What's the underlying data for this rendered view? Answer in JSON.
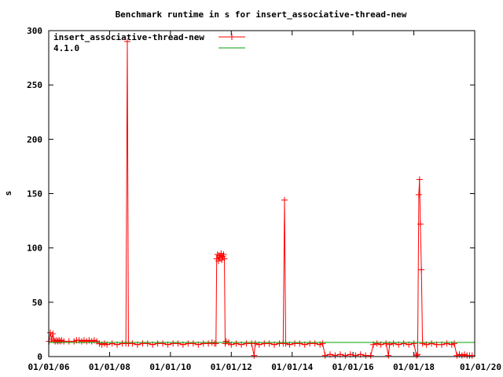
{
  "chart_data": {
    "type": "line",
    "title": "Benchmark runtime in s for insert_associative-thread-new",
    "xlabel": "",
    "ylabel": "s",
    "xlim": [
      "2006-01-01",
      "2020-01-01"
    ],
    "ylim": [
      0,
      300
    ],
    "x_ticks": [
      "01/01/06",
      "01/01/08",
      "01/01/10",
      "01/01/12",
      "01/01/14",
      "01/01/16",
      "01/01/18",
      "01/01/20"
    ],
    "y_ticks": [
      0,
      50,
      100,
      150,
      200,
      250,
      300
    ],
    "grid": false,
    "legend_position": "top-left",
    "colors": {
      "series": "#ff0000",
      "baseline": "#00a000",
      "axis": "#000000"
    },
    "series": [
      {
        "name": "insert_associative-thread-new",
        "style": "line-with-plus-markers",
        "color": "#ff0000",
        "points": [
          [
            "2006-01-05",
            14
          ],
          [
            "2006-01-20",
            22
          ],
          [
            "2006-02-05",
            16
          ],
          [
            "2006-02-20",
            21
          ],
          [
            "2006-03-05",
            15
          ],
          [
            "2006-03-20",
            14
          ],
          [
            "2006-04-05",
            15
          ],
          [
            "2006-04-20",
            14
          ],
          [
            "2006-05-05",
            15
          ],
          [
            "2006-05-20",
            14
          ],
          [
            "2006-06-05",
            15
          ],
          [
            "2006-07-01",
            14
          ],
          [
            "2006-09-01",
            14
          ],
          [
            "2006-11-01",
            14
          ],
          [
            "2006-12-01",
            15
          ],
          [
            "2007-01-01",
            15
          ],
          [
            "2007-02-01",
            14
          ],
          [
            "2007-03-01",
            15
          ],
          [
            "2007-04-01",
            14
          ],
          [
            "2007-05-01",
            15
          ],
          [
            "2007-06-01",
            14
          ],
          [
            "2007-07-01",
            15
          ],
          [
            "2007-08-01",
            14
          ],
          [
            "2007-09-01",
            12
          ],
          [
            "2007-10-01",
            11
          ],
          [
            "2007-11-01",
            12
          ],
          [
            "2007-12-01",
            11
          ],
          [
            "2008-02-01",
            12
          ],
          [
            "2008-04-01",
            11
          ],
          [
            "2008-06-01",
            12
          ],
          [
            "2008-07-15",
            12
          ],
          [
            "2008-08-01",
            290
          ],
          [
            "2008-08-15",
            12
          ],
          [
            "2008-10-01",
            12
          ],
          [
            "2008-12-01",
            11
          ],
          [
            "2009-02-01",
            12
          ],
          [
            "2009-04-01",
            12
          ],
          [
            "2009-06-01",
            11
          ],
          [
            "2009-08-01",
            12
          ],
          [
            "2009-10-01",
            12
          ],
          [
            "2009-12-01",
            11
          ],
          [
            "2010-02-01",
            12
          ],
          [
            "2010-04-01",
            12
          ],
          [
            "2010-06-01",
            11
          ],
          [
            "2010-08-01",
            12
          ],
          [
            "2010-10-01",
            12
          ],
          [
            "2010-12-01",
            11
          ],
          [
            "2011-02-01",
            12
          ],
          [
            "2011-04-01",
            12
          ],
          [
            "2011-05-15",
            13
          ],
          [
            "2011-06-15",
            12
          ],
          [
            "2011-07-01",
            12
          ],
          [
            "2011-07-10",
            90
          ],
          [
            "2011-07-20",
            94
          ],
          [
            "2011-08-01",
            88
          ],
          [
            "2011-08-10",
            93
          ],
          [
            "2011-08-20",
            91
          ],
          [
            "2011-09-01",
            95
          ],
          [
            "2011-09-10",
            89
          ],
          [
            "2011-09-20",
            92
          ],
          [
            "2011-10-01",
            94
          ],
          [
            "2011-10-10",
            90
          ],
          [
            "2011-10-20",
            12
          ],
          [
            "2011-11-01",
            14
          ],
          [
            "2011-12-01",
            13
          ],
          [
            "2012-01-01",
            11
          ],
          [
            "2012-03-01",
            12
          ],
          [
            "2012-05-01",
            11
          ],
          [
            "2012-07-01",
            12
          ],
          [
            "2012-09-01",
            12
          ],
          [
            "2012-10-01",
            1
          ],
          [
            "2012-10-15",
            12
          ],
          [
            "2012-12-01",
            11
          ],
          [
            "2013-02-01",
            12
          ],
          [
            "2013-04-01",
            12
          ],
          [
            "2013-06-01",
            11
          ],
          [
            "2013-08-01",
            12
          ],
          [
            "2013-09-15",
            12
          ],
          [
            "2013-10-01",
            144
          ],
          [
            "2013-10-15",
            12
          ],
          [
            "2013-12-01",
            11
          ],
          [
            "2014-02-01",
            12
          ],
          [
            "2014-04-01",
            12
          ],
          [
            "2014-06-01",
            11
          ],
          [
            "2014-08-01",
            12
          ],
          [
            "2014-10-01",
            12
          ],
          [
            "2014-12-01",
            11
          ],
          [
            "2015-01-01",
            12
          ],
          [
            "2015-02-01",
            1
          ],
          [
            "2015-04-01",
            2
          ],
          [
            "2015-06-01",
            1
          ],
          [
            "2015-08-01",
            2
          ],
          [
            "2015-10-01",
            1
          ],
          [
            "2015-12-01",
            2
          ],
          [
            "2016-02-01",
            1
          ],
          [
            "2016-04-01",
            2
          ],
          [
            "2016-06-01",
            1
          ],
          [
            "2016-08-01",
            1
          ],
          [
            "2016-09-01",
            11
          ],
          [
            "2016-10-15",
            12
          ],
          [
            "2016-12-01",
            11
          ],
          [
            "2017-02-01",
            12
          ],
          [
            "2017-03-01",
            1
          ],
          [
            "2017-03-15",
            11
          ],
          [
            "2017-05-01",
            12
          ],
          [
            "2017-07-01",
            11
          ],
          [
            "2017-09-01",
            12
          ],
          [
            "2017-11-01",
            11
          ],
          [
            "2018-01-01",
            12
          ],
          [
            "2018-02-01",
            1
          ],
          [
            "2018-02-15",
            2
          ],
          [
            "2018-03-01",
            149
          ],
          [
            "2018-03-10",
            163
          ],
          [
            "2018-03-20",
            122
          ],
          [
            "2018-04-01",
            80
          ],
          [
            "2018-04-15",
            12
          ],
          [
            "2018-06-01",
            11
          ],
          [
            "2018-08-01",
            12
          ],
          [
            "2018-10-01",
            11
          ],
          [
            "2018-12-01",
            11
          ],
          [
            "2019-02-01",
            12
          ],
          [
            "2019-04-01",
            11
          ],
          [
            "2019-05-01",
            12
          ],
          [
            "2019-06-01",
            1
          ],
          [
            "2019-07-01",
            2
          ],
          [
            "2019-08-01",
            1
          ],
          [
            "2019-09-01",
            2
          ],
          [
            "2019-10-01",
            1
          ],
          [
            "2019-11-01",
            1
          ],
          [
            "2019-12-01",
            1
          ]
        ]
      },
      {
        "name": "4.1.0",
        "style": "line",
        "color": "#00a000",
        "points": [
          [
            "2006-01-01",
            13
          ],
          [
            "2020-01-01",
            13
          ]
        ]
      }
    ]
  }
}
